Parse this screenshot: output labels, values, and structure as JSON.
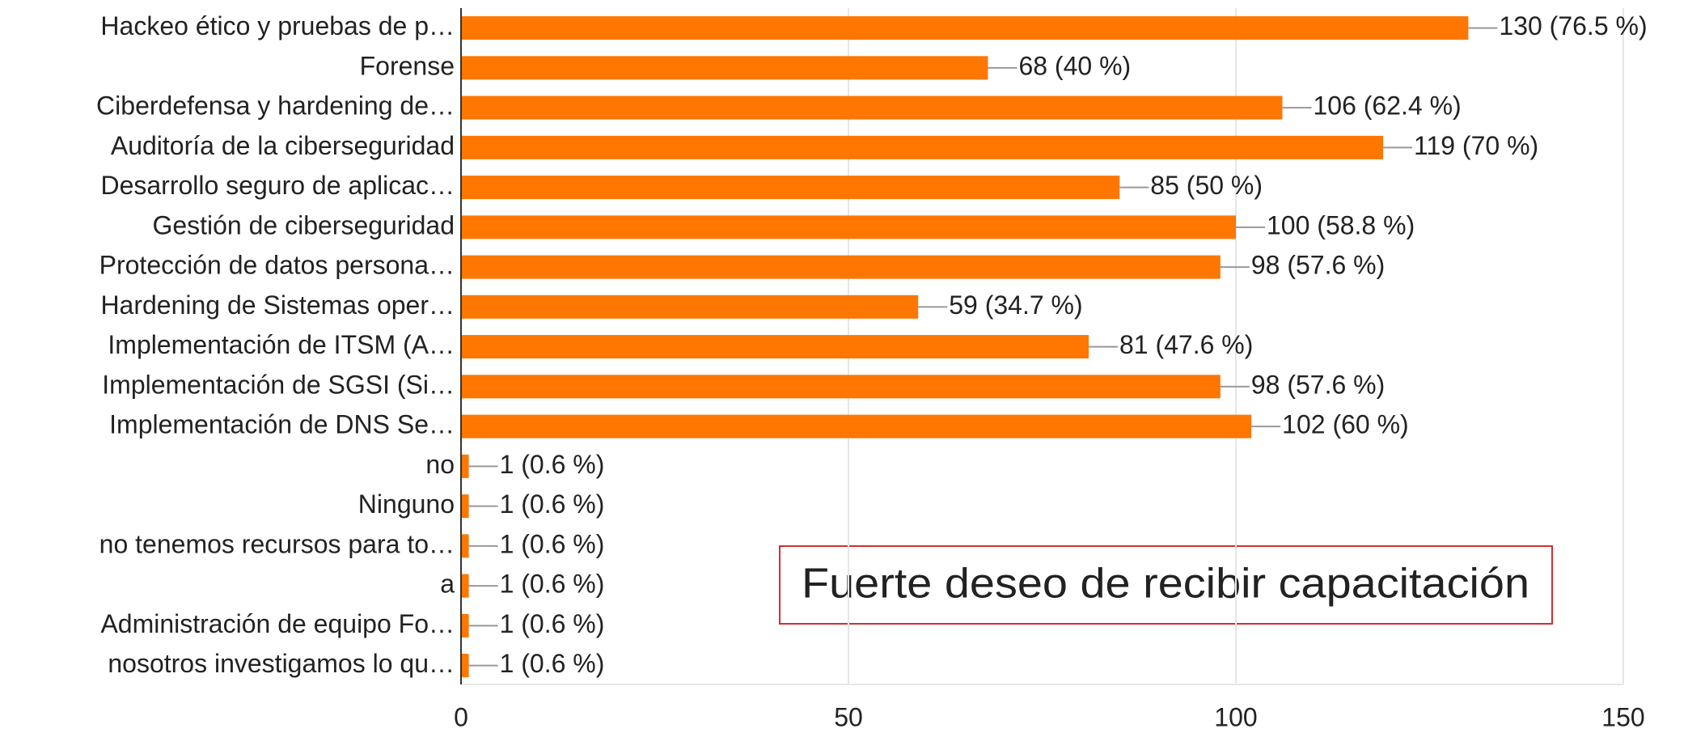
{
  "chart_data": {
    "type": "barh",
    "categories": [
      "Hackeo ético y pruebas de p…",
      "Forense",
      "Ciberdefensa y hardening de…",
      "Auditoría de la ciberseguridad",
      "Desarrollo seguro de aplicac…",
      "Gestión de ciberseguridad",
      "Protección de datos persona…",
      "Hardening de Sistemas oper…",
      "Implementación de ITSM (A…",
      "Implementación de SGSI (Si…",
      "Implementación de DNS Se…",
      "no",
      "Ninguno",
      "no tenemos recursos para to…",
      "a",
      "Administración de equipo Fo…",
      "nosotros investigamos lo qu…"
    ],
    "values": [
      130,
      68,
      106,
      119,
      85,
      100,
      98,
      59,
      81,
      98,
      102,
      1,
      1,
      1,
      1,
      1,
      1
    ],
    "value_labels": [
      "130 (76.5 %)",
      "68 (40 %)",
      "106 (62.4 %)",
      "119 (70 %)",
      "85 (50 %)",
      "100 (58.8 %)",
      "98 (57.6 %)",
      "59 (34.7 %)",
      "81 (47.6 %)",
      "98 (57.6 %)",
      "102 (60 %)",
      "1 (0.6 %)",
      "1 (0.6 %)",
      "1 (0.6 %)",
      "1 (0.6 %)",
      "1 (0.6 %)",
      "1 (0.6 %)"
    ],
    "color": "#ff7600",
    "xlim": [
      0,
      150
    ],
    "xticks": [
      0,
      50,
      100,
      150
    ],
    "grid": true,
    "annotation": "Fuerte deseo de recibir capacitación"
  }
}
